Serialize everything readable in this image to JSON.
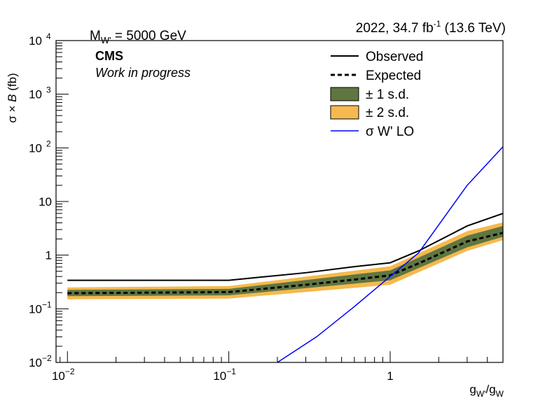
{
  "chart_data": {
    "type": "line",
    "header_left": {
      "main": "M",
      "sub": "W'",
      "rest": " = 5000 GeV"
    },
    "header_right": {
      "main": "2022, 34.7 fb",
      "sup": "-1",
      "rest": " (13.6 TeV)"
    },
    "experiment": "CMS",
    "status": "Work in progress",
    "xlabel": {
      "g1": "g",
      "s1": "W'",
      "mid": "/g",
      "s2": "W"
    },
    "ylabel": {
      "a": "σ × ",
      "b": "B",
      "c": " (fb)"
    },
    "x_scale": "log",
    "y_scale": "log",
    "xlim": [
      0.0085,
      5.0
    ],
    "ylim": [
      0.01,
      10000
    ],
    "x_ticks": [
      {
        "value": 0.01,
        "base": "10",
        "exp": "−2"
      },
      {
        "value": 0.1,
        "base": "10",
        "exp": "−1"
      },
      {
        "value": 1,
        "base": "1",
        "exp": ""
      }
    ],
    "y_ticks": [
      {
        "value": 0.01,
        "base": "10",
        "exp": "−2"
      },
      {
        "value": 0.1,
        "base": "10",
        "exp": "−1"
      },
      {
        "value": 1,
        "base": "1",
        "exp": ""
      },
      {
        "value": 10,
        "base": "10",
        "exp": ""
      },
      {
        "value": 100,
        "base": "10",
        "exp": "2"
      },
      {
        "value": 1000,
        "base": "10",
        "exp": "3"
      },
      {
        "value": 10000,
        "base": "10",
        "exp": "4"
      }
    ],
    "grid": false,
    "legend_position": "top-right",
    "legend": [
      {
        "label": "Observed",
        "style": "solid-line",
        "color": "#000000"
      },
      {
        "label": "Expected",
        "style": "dashed-line",
        "color": "#000000"
      },
      {
        "label": "± 1 s.d.",
        "style": "box",
        "color": "#607641"
      },
      {
        "label": "± 2 s.d.",
        "style": "box",
        "color": "#f5b94f"
      },
      {
        "label": "σ W' LO",
        "style": "solid-line",
        "color": "#0000ff"
      }
    ],
    "bands": {
      "x": [
        0.01,
        0.1,
        1.0,
        3.0,
        5.0
      ],
      "two_sd_low": [
        0.15,
        0.155,
        0.28,
        1.2,
        1.9
      ],
      "one_sd_low": [
        0.172,
        0.178,
        0.34,
        1.4,
        2.2
      ],
      "one_sd_high": [
        0.225,
        0.235,
        0.52,
        2.3,
        3.5
      ],
      "two_sd_high": [
        0.25,
        0.265,
        0.62,
        2.8,
        4.1
      ]
    },
    "series": [
      {
        "name": "Observed",
        "color": "#000000",
        "x": [
          0.01,
          0.1,
          0.3,
          0.6,
          1.0,
          1.5,
          3.0,
          5.0
        ],
        "values": [
          0.34,
          0.34,
          0.47,
          0.61,
          0.72,
          1.2,
          3.5,
          6.0
        ]
      },
      {
        "name": "Expected",
        "color": "#000000",
        "x": [
          0.01,
          0.1,
          0.3,
          0.6,
          1.0,
          1.5,
          3.0,
          5.0
        ],
        "values": [
          0.195,
          0.205,
          0.28,
          0.35,
          0.42,
          0.7,
          1.8,
          2.6
        ]
      },
      {
        "name": "σ W' LO",
        "color": "#0000ff",
        "x": [
          0.2,
          0.35,
          0.6,
          1.0,
          1.5,
          3.0,
          5.0
        ],
        "values": [
          0.01,
          0.03,
          0.11,
          0.4,
          1.1,
          20,
          105
        ]
      }
    ]
  }
}
